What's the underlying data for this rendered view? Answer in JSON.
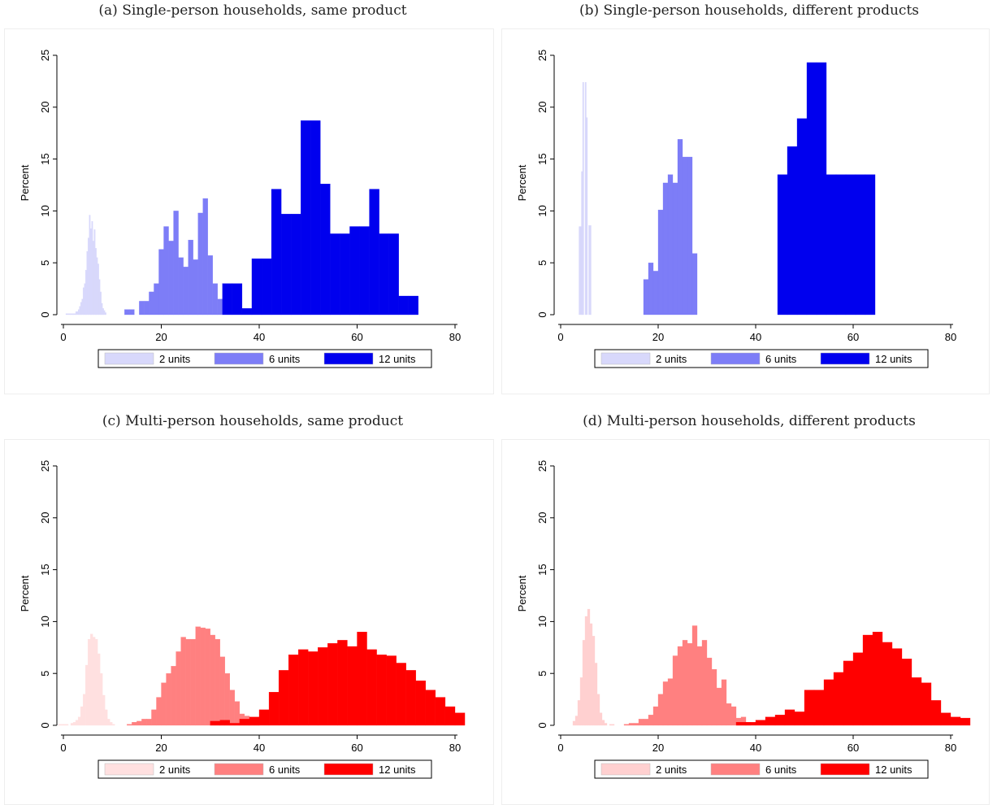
{
  "chart_data": [
    {
      "type": "bar",
      "title": "(a) Single-person households, same product",
      "ylabel": "Percent",
      "xlim": [
        0,
        80
      ],
      "ylim": [
        0,
        25
      ],
      "xticks": [
        0,
        20,
        40,
        60,
        80
      ],
      "yticks": [
        0,
        5,
        10,
        15,
        20,
        25
      ],
      "grid": false,
      "legend": "bottom",
      "series": [
        {
          "name": "2 units",
          "color": "#d8d8fb",
          "bins": [
            [
              0.5,
              0.1
            ],
            [
              1.5,
              0.1
            ],
            [
              2.0,
              0.1
            ],
            [
              2.5,
              0.3
            ],
            [
              2.75,
              0.3
            ],
            [
              3.0,
              0.5
            ],
            [
              3.25,
              0.8
            ],
            [
              3.5,
              1.2
            ],
            [
              3.75,
              1.5
            ],
            [
              4.0,
              2.6
            ],
            [
              4.25,
              3.0
            ],
            [
              4.5,
              4.3
            ],
            [
              4.75,
              6.1
            ],
            [
              5.0,
              7.4
            ],
            [
              5.25,
              9.6
            ],
            [
              5.5,
              8.3
            ],
            [
              5.75,
              9.0
            ],
            [
              6.0,
              7.1
            ],
            [
              6.25,
              8.2
            ],
            [
              6.5,
              6.4
            ],
            [
              6.75,
              5.5
            ],
            [
              7.0,
              4.9
            ],
            [
              7.25,
              3.4
            ],
            [
              7.5,
              2.2
            ],
            [
              7.75,
              1.1
            ],
            [
              8.0,
              0.6
            ],
            [
              8.25,
              0.4
            ],
            [
              8.5,
              0.2
            ]
          ]
        },
        {
          "name": "6 units",
          "color": "#7d7df7",
          "bins": [
            [
              12.5,
              0.5
            ],
            [
              13.5,
              0.5
            ],
            [
              15.5,
              1.3
            ],
            [
              16.5,
              1.3
            ],
            [
              17.5,
              2.2
            ],
            [
              18.5,
              3.0
            ],
            [
              19.5,
              6.3
            ],
            [
              20.5,
              8.5
            ],
            [
              21.5,
              7.1
            ],
            [
              22.5,
              10.0
            ],
            [
              23.5,
              5.5
            ],
            [
              24.5,
              4.6
            ],
            [
              25.5,
              7.2
            ],
            [
              26.5,
              5.3
            ],
            [
              27.5,
              9.8
            ],
            [
              28.5,
              11.2
            ],
            [
              29.5,
              5.7
            ],
            [
              30.5,
              3.0
            ],
            [
              31.5,
              1.5
            ]
          ]
        },
        {
          "name": "12 units",
          "color": "#0000ee",
          "bins": [
            [
              32.5,
              3.0
            ],
            [
              34.5,
              3.0
            ],
            [
              36.5,
              0.6
            ],
            [
              38.5,
              5.4
            ],
            [
              40.5,
              5.4
            ],
            [
              42.5,
              12.1
            ],
            [
              44.5,
              9.7
            ],
            [
              46.5,
              9.7
            ],
            [
              48.5,
              18.7
            ],
            [
              50.5,
              18.7
            ],
            [
              52.5,
              12.6
            ],
            [
              54.5,
              7.8
            ],
            [
              56.5,
              7.8
            ],
            [
              58.5,
              8.5
            ],
            [
              60.5,
              8.5
            ],
            [
              62.5,
              12.1
            ],
            [
              64.5,
              7.8
            ],
            [
              66.5,
              7.8
            ],
            [
              68.5,
              1.8
            ],
            [
              70.5,
              1.8
            ]
          ]
        }
      ]
    },
    {
      "type": "bar",
      "title": "(b) Single-person households, different products",
      "ylabel": "Percent",
      "xlim": [
        0,
        80
      ],
      "ylim": [
        0,
        25
      ],
      "xticks": [
        0,
        20,
        40,
        60,
        80
      ],
      "yticks": [
        0,
        5,
        10,
        15,
        20,
        25
      ],
      "grid": false,
      "legend": "bottom",
      "series": [
        {
          "name": "2 units",
          "color": "#d8d8fb",
          "bins": [
            [
              3.75,
              8.5
            ],
            [
              4.25,
              13.8
            ],
            [
              4.5,
              22.4
            ],
            [
              5.0,
              22.4
            ],
            [
              5.25,
              19.0
            ],
            [
              5.75,
              8.6
            ]
          ]
        },
        {
          "name": "6 units",
          "color": "#7d7df7",
          "bins": [
            [
              17.0,
              3.4
            ],
            [
              18.0,
              5.0
            ],
            [
              19.0,
              4.2
            ],
            [
              20.0,
              10.1
            ],
            [
              21.0,
              12.7
            ],
            [
              22.0,
              13.5
            ],
            [
              23.0,
              12.7
            ],
            [
              24.0,
              16.9
            ],
            [
              25.0,
              15.2
            ],
            [
              26.0,
              15.2
            ],
            [
              27.0,
              5.9
            ]
          ]
        },
        {
          "name": "12 units",
          "color": "#0000ee",
          "bins": [
            [
              44.5,
              13.5
            ],
            [
              46.5,
              16.2
            ],
            [
              48.5,
              18.9
            ],
            [
              50.5,
              24.3
            ],
            [
              52.5,
              24.3
            ],
            [
              54.5,
              13.5
            ],
            [
              56.5,
              13.5
            ],
            [
              58.5,
              13.5
            ],
            [
              60.5,
              13.5
            ],
            [
              62.5,
              13.5
            ]
          ]
        }
      ]
    },
    {
      "type": "bar",
      "title": "(c) Multi-person households, same product",
      "ylabel": "Percent",
      "xlim": [
        0,
        80
      ],
      "ylim": [
        0,
        25
      ],
      "xticks": [
        0,
        20,
        40,
        60,
        80
      ],
      "yticks": [
        0,
        5,
        10,
        15,
        20,
        25
      ],
      "grid": false,
      "legend": "bottom",
      "series": [
        {
          "name": "2 units",
          "color": "#ffe0e0",
          "bins": [
            [
              -1,
              0.1
            ],
            [
              0,
              0.1
            ],
            [
              1.5,
              0.2
            ],
            [
              2,
              0.3
            ],
            [
              2.5,
              0.5
            ],
            [
              3,
              0.8
            ],
            [
              3.5,
              1.8
            ],
            [
              4,
              3.0
            ],
            [
              4.5,
              5.8
            ],
            [
              5,
              8.3
            ],
            [
              5.5,
              8.8
            ],
            [
              6,
              8.5
            ],
            [
              6.5,
              8.3
            ],
            [
              7,
              6.9
            ],
            [
              7.5,
              5.0
            ],
            [
              8,
              2.9
            ],
            [
              8.5,
              1.5
            ],
            [
              9,
              0.6
            ],
            [
              9.5,
              0.3
            ],
            [
              10,
              0.1
            ]
          ]
        },
        {
          "name": "6 units",
          "color": "#ff8080",
          "bins": [
            [
              13,
              0.1
            ],
            [
              14,
              0.3
            ],
            [
              15,
              0.4
            ],
            [
              16,
              0.6
            ],
            [
              17,
              0.6
            ],
            [
              18,
              1.5
            ],
            [
              19,
              2.7
            ],
            [
              20,
              4.1
            ],
            [
              21,
              5.0
            ],
            [
              22,
              5.7
            ],
            [
              23,
              7.1
            ],
            [
              24,
              8.5
            ],
            [
              25,
              8.3
            ],
            [
              26,
              8.3
            ],
            [
              27,
              9.5
            ],
            [
              28,
              9.4
            ],
            [
              29,
              9.3
            ],
            [
              30,
              8.7
            ],
            [
              31,
              8.3
            ],
            [
              32,
              6.6
            ],
            [
              33,
              5.0
            ],
            [
              34,
              3.4
            ],
            [
              35,
              2.3
            ],
            [
              36,
              1.1
            ],
            [
              37,
              0.9
            ],
            [
              38,
              0.6
            ],
            [
              39,
              0.3
            ]
          ]
        },
        {
          "name": "12 units",
          "color": "#ff0000",
          "bins": [
            [
              30,
              0.4
            ],
            [
              32,
              0.5
            ],
            [
              34,
              0.2
            ],
            [
              36,
              0.6
            ],
            [
              38,
              0.8
            ],
            [
              40,
              1.5
            ],
            [
              42,
              3.2
            ],
            [
              44,
              5.3
            ],
            [
              46,
              6.8
            ],
            [
              48,
              7.3
            ],
            [
              50,
              7.1
            ],
            [
              52,
              7.5
            ],
            [
              54,
              7.9
            ],
            [
              56,
              8.2
            ],
            [
              58,
              7.6
            ],
            [
              60,
              9.0
            ],
            [
              62,
              7.3
            ],
            [
              64,
              6.8
            ],
            [
              66,
              6.7
            ],
            [
              68,
              6.0
            ],
            [
              70,
              5.3
            ],
            [
              72,
              4.3
            ],
            [
              74,
              3.4
            ],
            [
              76,
              2.7
            ],
            [
              78,
              1.8
            ],
            [
              80,
              1.2
            ]
          ]
        }
      ]
    },
    {
      "type": "bar",
      "title": "(d) Multi-person households, different products",
      "ylabel": "Percent",
      "xlim": [
        0,
        80
      ],
      "ylim": [
        0,
        25
      ],
      "xticks": [
        0,
        20,
        40,
        60,
        80
      ],
      "yticks": [
        0,
        5,
        10,
        15,
        20,
        25
      ],
      "grid": false,
      "legend": "bottom",
      "series": [
        {
          "name": "2 units",
          "color": "#ffd0d0",
          "bins": [
            [
              2.5,
              0.4
            ],
            [
              3,
              0.9
            ],
            [
              3.5,
              2.4
            ],
            [
              4,
              4.6
            ],
            [
              4.5,
              8.2
            ],
            [
              5,
              10.5
            ],
            [
              5.5,
              11.2
            ],
            [
              6,
              9.8
            ],
            [
              6.5,
              8.6
            ],
            [
              7,
              6.0
            ],
            [
              7.5,
              3.0
            ],
            [
              8,
              1.2
            ],
            [
              8.5,
              0.5
            ],
            [
              9,
              0.2
            ],
            [
              10,
              0.1
            ]
          ]
        },
        {
          "name": "6 units",
          "color": "#ff8080",
          "bins": [
            [
              13,
              0.1
            ],
            [
              14,
              0.2
            ],
            [
              15,
              0.2
            ],
            [
              16,
              0.6
            ],
            [
              17,
              0.6
            ],
            [
              18,
              1.0
            ],
            [
              19,
              1.8
            ],
            [
              20,
              3.0
            ],
            [
              21,
              4.2
            ],
            [
              22,
              4.5
            ],
            [
              23,
              6.7
            ],
            [
              24,
              7.6
            ],
            [
              25,
              8.2
            ],
            [
              26,
              7.9
            ],
            [
              27,
              9.6
            ],
            [
              28,
              7.6
            ],
            [
              29,
              8.2
            ],
            [
              30,
              6.5
            ],
            [
              31,
              5.4
            ],
            [
              32,
              3.6
            ],
            [
              33,
              4.4
            ],
            [
              34,
              2.1
            ],
            [
              35,
              1.8
            ],
            [
              36,
              0.7
            ],
            [
              37,
              0.8
            ],
            [
              38,
              0.3
            ]
          ]
        },
        {
          "name": "12 units",
          "color": "#ff0000",
          "bins": [
            [
              36,
              0.3
            ],
            [
              38,
              0.3
            ],
            [
              40,
              0.5
            ],
            [
              42,
              0.8
            ],
            [
              44,
              1.0
            ],
            [
              46,
              1.5
            ],
            [
              48,
              1.3
            ],
            [
              50,
              3.4
            ],
            [
              52,
              3.4
            ],
            [
              54,
              4.4
            ],
            [
              56,
              5.1
            ],
            [
              58,
              6.2
            ],
            [
              60,
              7.0
            ],
            [
              62,
              8.7
            ],
            [
              64,
              9.0
            ],
            [
              66,
              8.0
            ],
            [
              68,
              7.4
            ],
            [
              70,
              6.4
            ],
            [
              72,
              4.6
            ],
            [
              74,
              4.1
            ],
            [
              76,
              2.4
            ],
            [
              78,
              1.2
            ],
            [
              80,
              0.8
            ],
            [
              82,
              0.7
            ]
          ]
        }
      ]
    }
  ]
}
